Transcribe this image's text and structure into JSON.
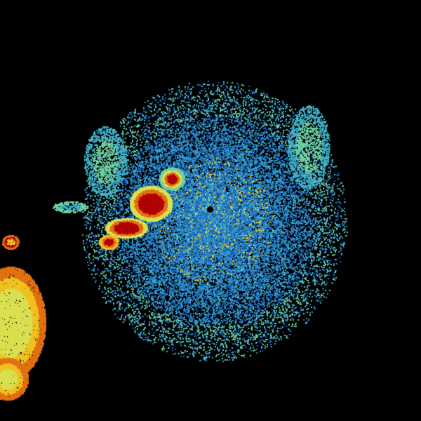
{
  "image": {
    "kind": "radar-reflectivity",
    "background": "#000000",
    "palette": [
      "#1a5fb4",
      "#2a8fd0",
      "#3fb0c8",
      "#6fd0a0",
      "#d8e050",
      "#f0c020",
      "#e07010",
      "#b00000"
    ],
    "features": [
      {
        "name": "clear-air-echo",
        "dominant_color": "#2a8fd0"
      },
      {
        "name": "storm-cell",
        "dominant_color": "#b00000"
      },
      {
        "name": "precipitation-band",
        "dominant_color": "#f0c020"
      },
      {
        "name": "radar-site",
        "dominant_color": "#000000"
      }
    ]
  }
}
